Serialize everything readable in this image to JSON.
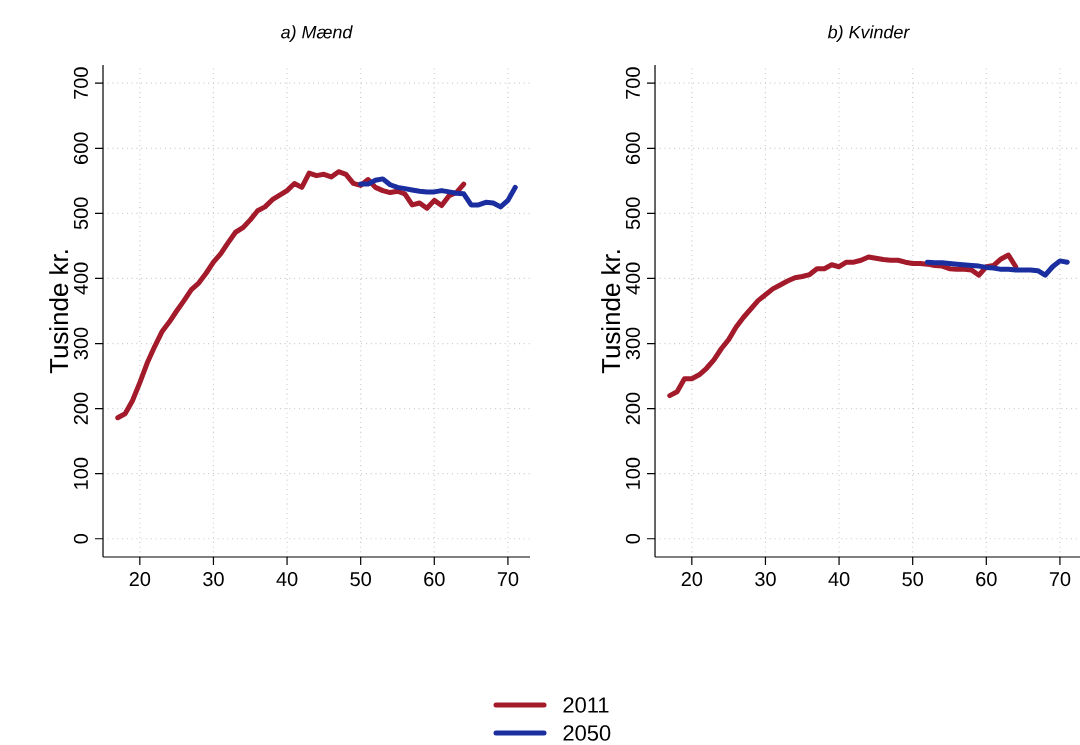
{
  "chart_data": [
    {
      "type": "line",
      "title": "a) Mænd",
      "ylabel": "Tusinde kr.",
      "xlim": [
        15,
        73
      ],
      "ylim": [
        -28,
        728
      ],
      "xticks": [
        20,
        30,
        40,
        50,
        60,
        70
      ],
      "yticks": [
        0,
        100,
        200,
        300,
        400,
        500,
        600,
        700
      ],
      "grid": true,
      "legend": "bottom",
      "series": [
        {
          "name": "2011",
          "color": "#a31b2b",
          "x": [
            17,
            18,
            19,
            20,
            21,
            22,
            23,
            24,
            25,
            26,
            27,
            28,
            29,
            30,
            31,
            32,
            33,
            34,
            35,
            36,
            37,
            38,
            39,
            40,
            41,
            42,
            43,
            44,
            45,
            46,
            47,
            48,
            49,
            50,
            51,
            52,
            53,
            54,
            55,
            56,
            57,
            58,
            59,
            60,
            61,
            62,
            63,
            64
          ],
          "values": [
            186,
            192,
            212,
            240,
            270,
            295,
            318,
            333,
            350,
            366,
            383,
            393,
            408,
            425,
            438,
            455,
            471,
            478,
            490,
            504,
            510,
            521,
            528,
            535,
            546,
            540,
            562,
            558,
            560,
            556,
            564,
            560,
            546,
            543,
            552,
            540,
            535,
            532,
            534,
            530,
            513,
            516,
            508,
            520,
            512,
            527,
            532,
            545
          ]
        },
        {
          "name": "2050",
          "color": "#1a2ea0",
          "x": [
            50,
            51,
            52,
            53,
            54,
            55,
            56,
            57,
            58,
            59,
            60,
            61,
            62,
            63,
            64,
            65,
            66,
            67,
            68,
            69,
            70,
            71
          ],
          "values": [
            545,
            545,
            551,
            553,
            544,
            540,
            538,
            536,
            534,
            533,
            533,
            535,
            533,
            531,
            530,
            513,
            513,
            517,
            516,
            510,
            520,
            540
          ]
        }
      ]
    },
    {
      "type": "line",
      "title": "b) Kvinder",
      "ylabel": "Tusinde kr.",
      "xlim": [
        15,
        73
      ],
      "ylim": [
        -28,
        728
      ],
      "xticks": [
        20,
        30,
        40,
        50,
        60,
        70
      ],
      "yticks": [
        0,
        100,
        200,
        300,
        400,
        500,
        600,
        700
      ],
      "grid": true,
      "series": [
        {
          "color": "#a31b2b",
          "x": [
            17,
            18,
            19,
            20,
            21,
            22,
            23,
            24,
            25,
            26,
            27,
            28,
            29,
            30,
            31,
            32,
            33,
            34,
            35,
            36,
            37,
            38,
            39,
            40,
            41,
            42,
            43,
            44,
            45,
            46,
            47,
            48,
            49,
            50,
            51,
            52,
            53,
            54,
            55,
            56,
            57,
            58,
            59,
            60,
            61,
            62,
            63,
            64
          ],
          "values": [
            220,
            226,
            246,
            246,
            252,
            262,
            275,
            292,
            306,
            325,
            340,
            353,
            366,
            375,
            384,
            390,
            396,
            401,
            403,
            406,
            415,
            415,
            421,
            418,
            425,
            425,
            428,
            433,
            431,
            429,
            428,
            428,
            425,
            423,
            423,
            422,
            420,
            419,
            415,
            414,
            414,
            413,
            405,
            418,
            420,
            430,
            436,
            418
          ]
        },
        {
          "color": "#1a2ea0",
          "x": [
            52,
            53,
            54,
            55,
            56,
            57,
            58,
            59,
            60,
            61,
            62,
            63,
            64,
            65,
            66,
            67,
            68,
            69,
            70,
            71
          ],
          "values": [
            425,
            424,
            424,
            423,
            422,
            421,
            420,
            419,
            417,
            416,
            414,
            414,
            413,
            413,
            413,
            412,
            405,
            418,
            427,
            425
          ]
        }
      ]
    }
  ]
}
